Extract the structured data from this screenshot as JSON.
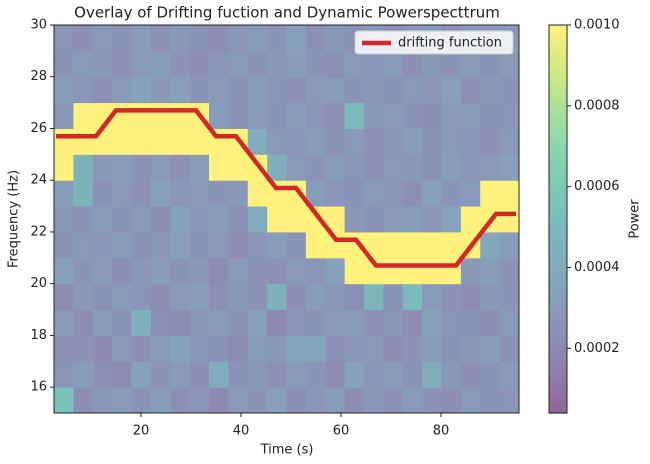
{
  "chart_data": {
    "type": "heatmap",
    "title": "Overlay of Drifting fuction and Dynamic Powerspecttrum",
    "xlabel": "Time (s)",
    "ylabel": "Frequency (Hz)",
    "xlim": [
      2.6,
      95.6
    ],
    "ylim": [
      15,
      30
    ],
    "xticks": [
      20,
      40,
      60,
      80
    ],
    "yticks": [
      16,
      18,
      20,
      22,
      24,
      26,
      28,
      30
    ],
    "z": [
      [
        0.00055,
        0.00022,
        0.00028,
        0.0003,
        0.00025,
        0.00032,
        0.00024,
        0.00027,
        0.00021,
        0.00029,
        0.00026,
        0.00033,
        0.00023,
        0.00027,
        0.00031,
        0.00022,
        0.00028,
        0.00024,
        0.0003,
        0.00026,
        0.00023,
        0.00029,
        0.00025,
        0.00027
      ],
      [
        0.00027,
        0.00031,
        0.00024,
        0.00022,
        0.00035,
        0.00026,
        0.00029,
        0.00023,
        0.00042,
        0.00025,
        0.00028,
        0.00024,
        0.0003,
        0.00026,
        0.00022,
        0.00034,
        0.00027,
        0.00031,
        0.00025,
        0.00041,
        0.00028,
        0.00023,
        0.00026,
        0.0003
      ],
      [
        0.00024,
        0.00026,
        0.00021,
        0.00029,
        0.00023,
        0.0003,
        0.00034,
        0.00027,
        0.00025,
        0.00022,
        0.00031,
        0.00028,
        0.00036,
        0.00038,
        0.00024,
        0.00027,
        0.00029,
        0.00022,
        0.00026,
        0.0003,
        0.00025,
        0.00028,
        0.00032,
        0.00024
      ],
      [
        0.00029,
        0.00023,
        0.00031,
        0.00026,
        0.00045,
        0.00024,
        0.00022,
        0.00028,
        0.0003,
        0.00026,
        0.00033,
        0.00021,
        0.00027,
        0.00025,
        0.00029,
        0.00031,
        0.00024,
        0.00028,
        0.00022,
        0.00035,
        0.00027,
        0.00025,
        0.00023,
        0.00029
      ],
      [
        0.00022,
        0.00028,
        0.00025,
        0.0003,
        0.00027,
        0.00023,
        0.00029,
        0.00032,
        0.00024,
        0.00028,
        0.00026,
        0.00045,
        0.00023,
        0.00031,
        0.00027,
        0.00024,
        0.00048,
        0.00026,
        0.00052,
        0.00029,
        0.00025,
        0.00022,
        0.00028,
        0.00026
      ],
      [
        0.00033,
        0.00026,
        0.00029,
        0.00023,
        0.00027,
        0.00031,
        0.00025,
        0.00028,
        0.00022,
        0.0003,
        0.00026,
        0.00024,
        0.00029,
        0.00027,
        0.00034,
        0.001,
        0.001,
        0.001,
        0.001,
        0.001,
        0.001,
        0.00028,
        0.00032,
        0.00025
      ],
      [
        0.00026,
        0.0003,
        0.00027,
        0.00031,
        0.00024,
        0.00028,
        0.00033,
        0.00025,
        0.00029,
        0.00023,
        0.00027,
        0.00031,
        0.00026,
        0.001,
        0.001,
        0.001,
        0.001,
        0.001,
        0.001,
        0.001,
        0.001,
        0.001,
        0.00038,
        0.00031
      ],
      [
        0.00028,
        0.00024,
        0.00031,
        0.00026,
        0.00029,
        0.00023,
        0.00035,
        0.00027,
        0.00032,
        0.00024,
        0.00041,
        0.001,
        0.001,
        0.001,
        0.001,
        0.00028,
        0.00025,
        0.00029,
        0.00031,
        0.00027,
        0.00036,
        0.001,
        0.001,
        0.001
      ],
      [
        0.00031,
        0.00046,
        0.00025,
        0.00029,
        0.00024,
        0.00033,
        0.00027,
        0.0003,
        0.00026,
        0.00028,
        0.001,
        0.001,
        0.001,
        0.00032,
        0.00027,
        0.00025,
        0.0003,
        0.00028,
        0.00024,
        0.00033,
        0.00026,
        0.0003,
        0.001,
        0.001
      ],
      [
        0.001,
        0.00045,
        0.00028,
        0.00031,
        0.00026,
        0.00029,
        0.00024,
        0.00032,
        0.001,
        0.001,
        0.001,
        0.00043,
        0.00029,
        0.00026,
        0.00031,
        0.00027,
        0.00024,
        0.0003,
        0.00028,
        0.00025,
        0.00032,
        0.00027,
        0.00029,
        0.00033
      ],
      [
        0.001,
        0.001,
        0.001,
        0.001,
        0.001,
        0.001,
        0.001,
        0.001,
        0.001,
        0.001,
        0.00042,
        0.0003,
        0.00027,
        0.00031,
        0.00026,
        0.00029,
        0.00024,
        0.00028,
        0.00032,
        0.00025,
        0.0003,
        0.00027,
        0.00024,
        0.00029
      ],
      [
        0.00028,
        0.001,
        0.001,
        0.001,
        0.001,
        0.001,
        0.001,
        0.001,
        0.00031,
        0.00026,
        0.00029,
        0.00025,
        0.00032,
        0.00027,
        0.00024,
        0.00051,
        0.00028,
        0.0003,
        0.00026,
        0.00023,
        0.00029,
        0.00031,
        0.00025,
        0.00027
      ],
      [
        0.00032,
        0.00027,
        0.00024,
        0.0003,
        0.00035,
        0.00028,
        0.00033,
        0.00026,
        0.00029,
        0.00025,
        0.00031,
        0.00027,
        0.00024,
        0.00029,
        0.00032,
        0.00026,
        0.00028,
        0.00025,
        0.0003,
        0.00027,
        0.00033,
        0.00024,
        0.00028,
        0.00026
      ],
      [
        0.00025,
        0.0003,
        0.00028,
        0.00024,
        0.00029,
        0.00031,
        0.00026,
        0.00023,
        0.00027,
        0.0003,
        0.00025,
        0.00028,
        0.00032,
        0.00026,
        0.00024,
        0.00029,
        0.00027,
        0.00031,
        0.00023,
        0.00028,
        0.00026,
        0.0003,
        0.00025,
        0.00029
      ],
      [
        0.00027,
        0.00023,
        0.00029,
        0.00026,
        0.00031,
        0.00024,
        0.00028,
        0.00025,
        0.00022,
        0.00027,
        0.0003,
        0.00026,
        0.00033,
        0.00024,
        0.00028,
        0.00025,
        0.00029,
        0.00023,
        0.00027,
        0.00031,
        0.00024,
        0.00028,
        0.00026,
        0.0003
      ]
    ],
    "colormap": "viridis",
    "alpha": 0.6,
    "colorbar": {
      "label": "Power",
      "lim": [
        4e-05,
        0.001
      ],
      "ticks": [
        0.0002,
        0.0004,
        0.0006,
        0.0008,
        {
          "value": 0.001,
          "label": "0.0010"
        }
      ]
    },
    "series": [
      {
        "name": "drifting function",
        "color": "#d62728",
        "x": [
          3,
          11,
          15,
          31,
          35,
          39,
          47,
          51,
          59,
          63,
          67,
          83,
          91,
          95
        ],
        "y": [
          25.7,
          25.7,
          26.7,
          26.7,
          25.7,
          25.7,
          23.7,
          23.7,
          21.7,
          21.7,
          20.7,
          20.7,
          22.7,
          22.7
        ]
      }
    ],
    "legend": "upper right"
  }
}
